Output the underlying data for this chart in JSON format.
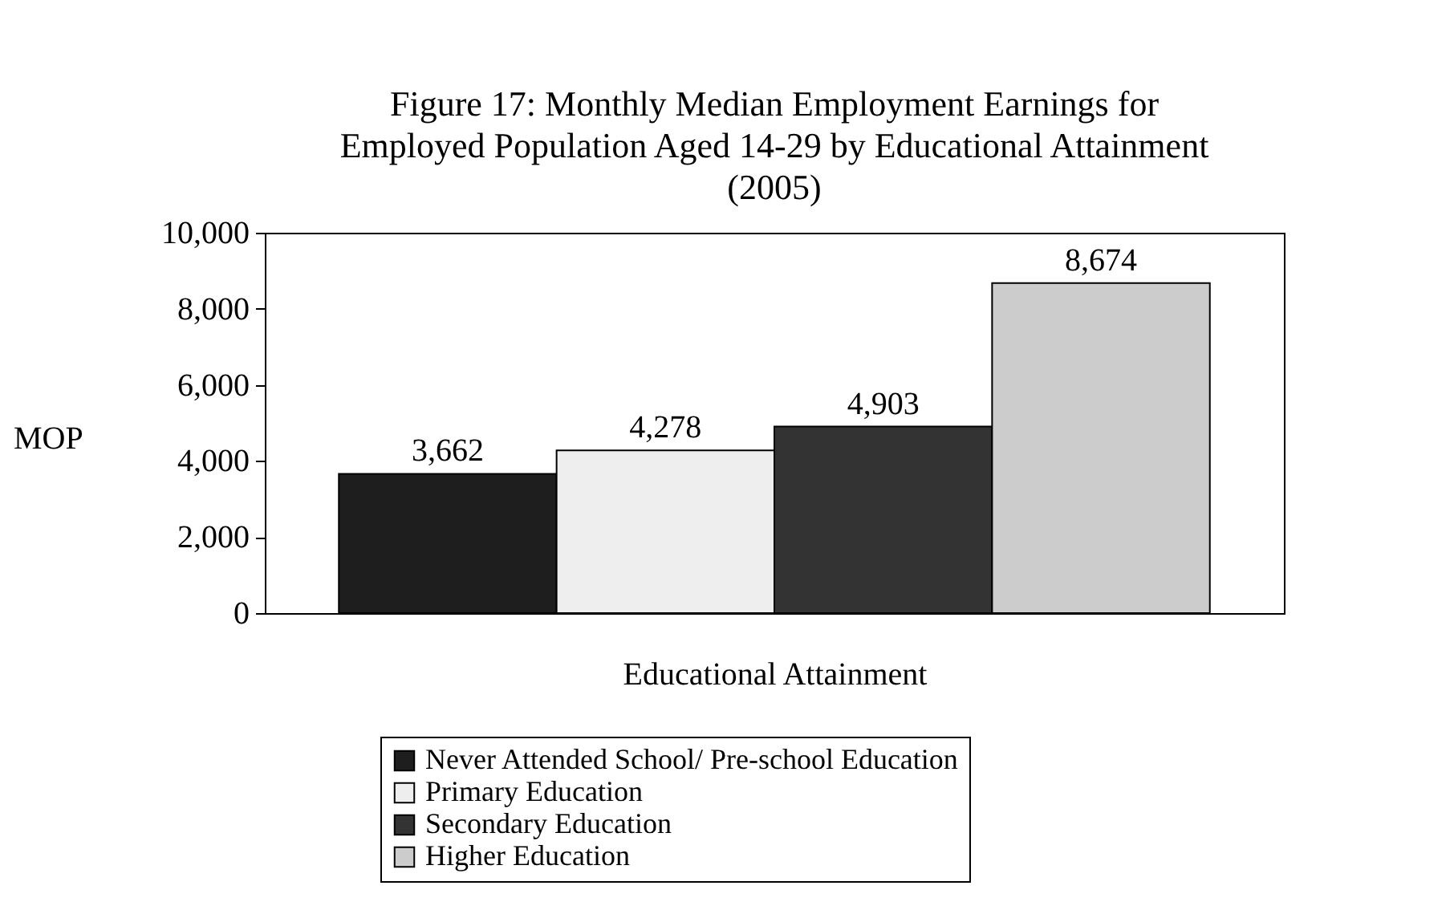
{
  "chart_data": {
    "type": "bar",
    "title": "Figure 17: Monthly Median Employment Earnings for Employed Population Aged 14-29 by Educational Attainment (2005)",
    "xlabel": "Educational Attainment",
    "ylabel": "MOP",
    "categories": [
      null,
      null,
      null,
      null
    ],
    "stacked": true,
    "series": [
      {
        "name": "Never Attended School/ Pre-school Education",
        "color": "#1e1e1e",
        "values": [
          3662,
          null,
          null,
          null
        ],
        "value_labels": [
          "3,662",
          null,
          null,
          null
        ]
      },
      {
        "name": "Primary Education",
        "color": "#eeeeee",
        "values": [
          null,
          4278,
          null,
          null
        ],
        "value_labels": [
          null,
          "4,278",
          null,
          null
        ]
      },
      {
        "name": "Secondary Education",
        "color": "#333333",
        "values": [
          null,
          null,
          4903,
          null
        ],
        "value_labels": [
          null,
          null,
          "4,903",
          null
        ]
      },
      {
        "name": "Higher Education",
        "color": "#cccccc",
        "values": [
          null,
          null,
          null,
          8674
        ],
        "value_labels": [
          null,
          null,
          null,
          "8,674"
        ]
      }
    ],
    "ylim": [
      0,
      10000
    ],
    "yticks": [
      0,
      {
        "value": 2000,
        "label": "2,000"
      },
      {
        "value": 4000,
        "label": "4,000"
      },
      {
        "value": 6000,
        "label": "6,000"
      },
      {
        "value": 8000,
        "label": "8,000"
      },
      {
        "value": 10000,
        "label": "10,000"
      }
    ],
    "legend": "bottom",
    "grid": false
  }
}
